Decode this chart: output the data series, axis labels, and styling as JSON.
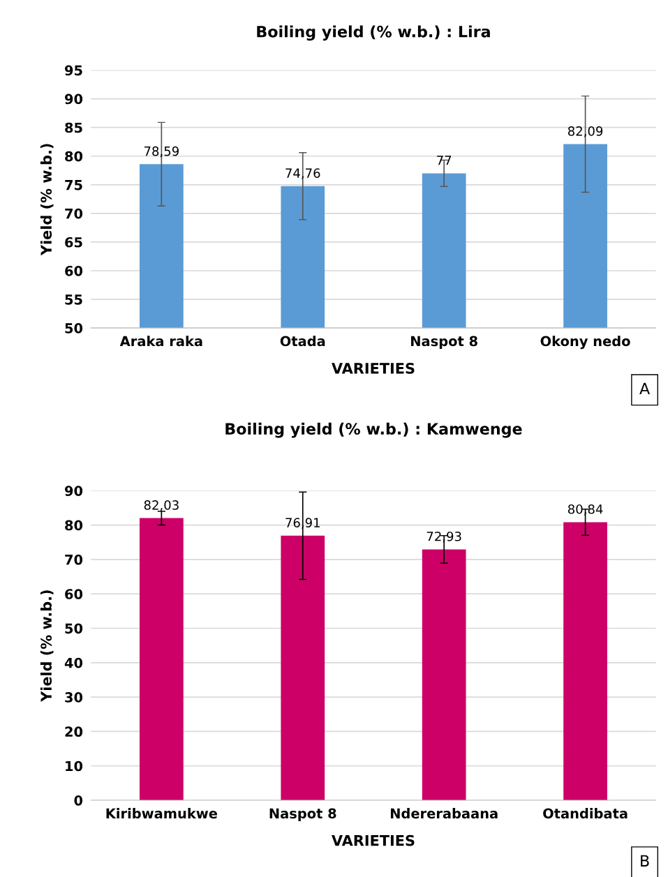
{
  "chart_data": [
    {
      "type": "bar",
      "title": "Boiling yield (% w.b.) : Lira",
      "xlabel": "VARIETIES",
      "ylabel": "Yield (% w.b.)",
      "categories": [
        "Araka raka",
        "Otada",
        "Naspot 8",
        "Okony nedo"
      ],
      "values": [
        78.59,
        74.76,
        77,
        82.09
      ],
      "value_labels": [
        "78,59",
        "74,76",
        "77",
        "82,09"
      ],
      "errors": [
        7.3,
        5.85,
        2.3,
        8.4
      ],
      "color": "#5b9bd5",
      "ylim": [
        50,
        95
      ],
      "yticks": [
        50,
        55,
        60,
        65,
        70,
        75,
        80,
        85,
        90,
        95
      ],
      "grid": "y",
      "legend": false,
      "annotations": [
        "A"
      ]
    },
    {
      "type": "bar",
      "title": "Boiling yield (% w.b.) : Kamwenge",
      "xlabel": "VARIETIES",
      "ylabel": "Yield (% w.b.)",
      "categories": [
        "Kiribwamukwe",
        "Naspot 8",
        "Ndererabaana",
        "Otandibata"
      ],
      "values": [
        82.03,
        76.91,
        72.93,
        80.84
      ],
      "value_labels": [
        "82,03",
        "76,91",
        "72,93",
        "80,84"
      ],
      "errors": [
        2,
        12.7,
        4,
        3.8
      ],
      "color": "#cc0066",
      "ylim": [
        0,
        90
      ],
      "yticks": [
        0,
        10,
        20,
        30,
        40,
        50,
        60,
        70,
        80,
        90
      ],
      "grid": "y",
      "legend": false,
      "annotations": [
        "B"
      ]
    }
  ]
}
